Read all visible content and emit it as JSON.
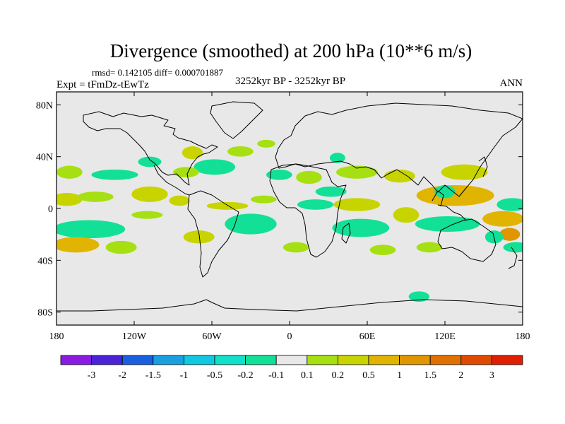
{
  "chart_data": {
    "type": "heatmap",
    "title": "Divergence (smoothed) at 200 hPa (10**6 m/s)",
    "stats": "rmsd= 0.142105 diff= 0.000701887",
    "experiment": "Expt = tFmDz-tEwTz",
    "period": "3252kyr BP - 3252kyr BP",
    "season": "ANN",
    "xlim": [
      -180,
      180
    ],
    "ylim": [
      -90,
      90
    ],
    "x_ticks": [
      {
        "value": -180,
        "label": "180"
      },
      {
        "value": -120,
        "label": "120W"
      },
      {
        "value": -60,
        "label": "60W"
      },
      {
        "value": 0,
        "label": "0"
      },
      {
        "value": 60,
        "label": "60E"
      },
      {
        "value": 120,
        "label": "120E"
      },
      {
        "value": 180,
        "label": "180"
      }
    ],
    "y_ticks": [
      {
        "value": 80,
        "label": "80N"
      },
      {
        "value": 40,
        "label": "40N"
      },
      {
        "value": 0,
        "label": "0"
      },
      {
        "value": -40,
        "label": "40S"
      },
      {
        "value": -80,
        "label": "80S"
      }
    ],
    "colorbar": {
      "colors": [
        "#8a1be0",
        "#4a22d8",
        "#1a5fe0",
        "#1a9fe0",
        "#12c8e0",
        "#12e0c8",
        "#12e096",
        "#e8e8e8",
        "#a6e012",
        "#c8d400",
        "#e0b400",
        "#e09600",
        "#e07000",
        "#e04a00",
        "#e01e00"
      ],
      "levels": [
        -3,
        -2,
        -1.5,
        -1,
        -0.5,
        -0.2,
        -0.1,
        0.1,
        0.2,
        0.5,
        1,
        1.5,
        2,
        3
      ],
      "labels": [
        "-3",
        "-2",
        "-1.5",
        "-1",
        "-0.5",
        "-0.2",
        "-0.1",
        "0.1",
        "0.2",
        "0.5",
        "1",
        "1.5",
        "2",
        "3"
      ]
    },
    "regions": [
      {
        "lon": -75,
        "lat": 43,
        "rlon": 8,
        "rlat": 5,
        "value": 0.3
      },
      {
        "lon": -108,
        "lat": 36,
        "rlon": 9,
        "rlat": 4,
        "value": -0.15
      },
      {
        "lon": -58,
        "lat": 32,
        "rlon": 16,
        "rlat": 6,
        "value": -0.15
      },
      {
        "lon": -38,
        "lat": 44,
        "rlon": 10,
        "rlat": 4,
        "value": 0.15
      },
      {
        "lon": -18,
        "lat": 50,
        "rlon": 7,
        "rlat": 3,
        "value": 0.15
      },
      {
        "lon": -80,
        "lat": 28,
        "rlon": 10,
        "rlat": 4,
        "value": 0.15
      },
      {
        "lon": -170,
        "lat": 28,
        "rlon": 10,
        "rlat": 5,
        "value": 0.15
      },
      {
        "lon": -135,
        "lat": 26,
        "rlon": 18,
        "rlat": 4,
        "value": -0.15
      },
      {
        "lon": -172,
        "lat": 7,
        "rlon": 12,
        "rlat": 5,
        "value": 0.3
      },
      {
        "lon": -150,
        "lat": 9,
        "rlon": 14,
        "rlat": 4,
        "value": 0.15
      },
      {
        "lon": -108,
        "lat": 11,
        "rlon": 14,
        "rlat": 6,
        "value": 0.3
      },
      {
        "lon": -85,
        "lat": 6,
        "rlon": 8,
        "rlat": 4,
        "value": 0.3
      },
      {
        "lon": -48,
        "lat": 2,
        "rlon": 16,
        "rlat": 3,
        "value": 0.3
      },
      {
        "lon": -20,
        "lat": 7,
        "rlon": 10,
        "rlat": 3,
        "value": 0.15
      },
      {
        "lon": 20,
        "lat": 3,
        "rlon": 14,
        "rlat": 4,
        "value": -0.15
      },
      {
        "lon": 52,
        "lat": 3,
        "rlon": 18,
        "rlat": 5,
        "value": 0.3
      },
      {
        "lon": 15,
        "lat": 24,
        "rlon": 10,
        "rlat": 5,
        "value": 0.15
      },
      {
        "lon": -8,
        "lat": 26,
        "rlon": 10,
        "rlat": 4,
        "value": -0.15
      },
      {
        "lon": 52,
        "lat": 28,
        "rlon": 16,
        "rlat": 5,
        "value": 0.15
      },
      {
        "lon": 37,
        "lat": 39,
        "rlon": 6,
        "rlat": 4,
        "value": -0.15
      },
      {
        "lon": 32,
        "lat": 13,
        "rlon": 12,
        "rlat": 4,
        "value": -0.15
      },
      {
        "lon": 85,
        "lat": 25,
        "rlon": 12,
        "rlat": 5,
        "value": 0.3
      },
      {
        "lon": 135,
        "lat": 28,
        "rlon": 18,
        "rlat": 6,
        "value": 0.3
      },
      {
        "lon": 128,
        "lat": 10,
        "rlon": 30,
        "rlat": 8,
        "value": 0.6
      },
      {
        "lon": 120,
        "lat": 13,
        "rlon": 8,
        "rlat": 5,
        "value": -0.15
      },
      {
        "lon": 172,
        "lat": 3,
        "rlon": 12,
        "rlat": 5,
        "value": -0.15
      },
      {
        "lon": -155,
        "lat": -16,
        "rlon": 28,
        "rlat": 7,
        "value": -0.15
      },
      {
        "lon": -165,
        "lat": -28,
        "rlon": 18,
        "rlat": 6,
        "value": 0.6
      },
      {
        "lon": -130,
        "lat": -30,
        "rlon": 12,
        "rlat": 5,
        "value": 0.15
      },
      {
        "lon": -110,
        "lat": -5,
        "rlon": 12,
        "rlat": 3,
        "value": 0.15
      },
      {
        "lon": -70,
        "lat": -22,
        "rlon": 12,
        "rlat": 5,
        "value": 0.3
      },
      {
        "lon": -30,
        "lat": -12,
        "rlon": 20,
        "rlat": 8,
        "value": -0.15
      },
      {
        "lon": 5,
        "lat": -30,
        "rlon": 10,
        "rlat": 4,
        "value": 0.15
      },
      {
        "lon": 55,
        "lat": -15,
        "rlon": 22,
        "rlat": 7,
        "value": -0.15
      },
      {
        "lon": 90,
        "lat": -5,
        "rlon": 10,
        "rlat": 6,
        "value": 0.3
      },
      {
        "lon": 122,
        "lat": -12,
        "rlon": 25,
        "rlat": 6,
        "value": -0.15
      },
      {
        "lon": 165,
        "lat": -8,
        "rlon": 16,
        "rlat": 6,
        "value": 0.6
      },
      {
        "lon": 170,
        "lat": -20,
        "rlon": 8,
        "rlat": 5,
        "value": 1.2
      },
      {
        "lon": 158,
        "lat": -22,
        "rlon": 7,
        "rlat": 5,
        "value": -0.15
      },
      {
        "lon": 72,
        "lat": -32,
        "rlon": 10,
        "rlat": 4,
        "value": 0.15
      },
      {
        "lon": 108,
        "lat": -30,
        "rlon": 10,
        "rlat": 4,
        "value": 0.15
      },
      {
        "lon": 175,
        "lat": -30,
        "rlon": 10,
        "rlat": 4,
        "value": -0.15
      },
      {
        "lon": 100,
        "lat": -68,
        "rlon": 8,
        "rlat": 4,
        "value": -0.15
      }
    ]
  }
}
